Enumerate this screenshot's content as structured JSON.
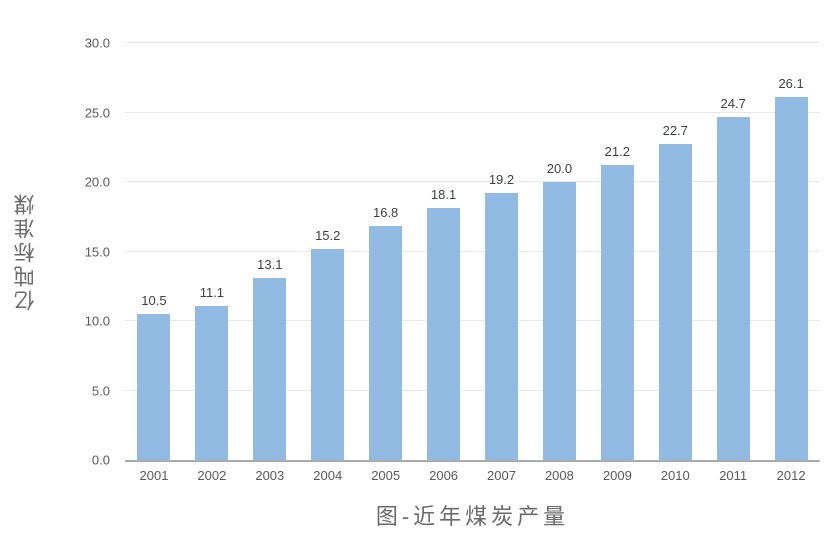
{
  "chart_data": {
    "type": "bar",
    "title": "图-近年煤炭产量",
    "ylabel": "亿吨标准煤",
    "xlabel": "",
    "categories": [
      "2001",
      "2002",
      "2003",
      "2004",
      "2005",
      "2006",
      "2007",
      "2008",
      "2009",
      "2010",
      "2011",
      "2012"
    ],
    "values": [
      10.5,
      11.1,
      13.1,
      15.2,
      16.8,
      18.1,
      19.2,
      20.0,
      21.2,
      22.7,
      24.7,
      26.1
    ],
    "data_labels": [
      "10.5",
      "11.1",
      "13.1",
      "15.2",
      "16.8",
      "18.1",
      "19.2",
      "20.0",
      "21.2",
      "22.7",
      "24.7",
      "26.1"
    ],
    "ylim": [
      0,
      30
    ],
    "yticks": [
      "0.0",
      "5.0",
      "10.0",
      "15.0",
      "20.0",
      "25.0",
      "30.0"
    ],
    "grid": true,
    "legend": false,
    "colors": {
      "bar": "#90BAE2",
      "axis": "#ABABAB",
      "gridline": "#E8E8E8",
      "tick_text": "#595959",
      "data_label_text": "#3F3F3F",
      "title_text": "#6A6A6A"
    }
  }
}
